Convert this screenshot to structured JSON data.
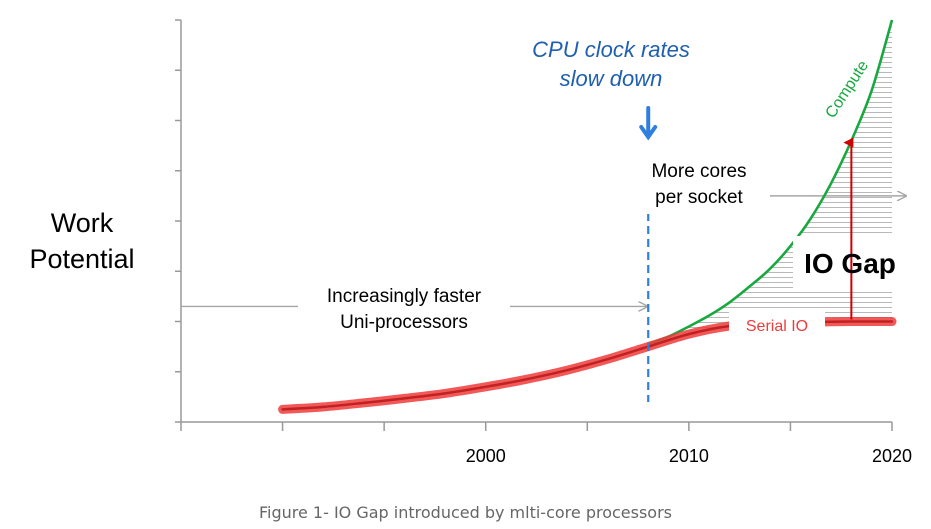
{
  "chart_data": {
    "type": "line",
    "ylabel": [
      "Work",
      "Potential"
    ],
    "x": {
      "range": [
        1985,
        2020
      ],
      "ticks": [
        1985,
        1990,
        1995,
        2000,
        2005,
        2010,
        2015,
        2020
      ],
      "labeled_ticks": [
        2000,
        2010,
        2020
      ]
    },
    "y": {
      "range": [
        0,
        8
      ],
      "ticks": [
        0,
        1,
        2,
        3,
        4,
        5,
        6,
        7,
        8
      ]
    },
    "series": [
      {
        "name": "Compute",
        "color": "#18a840",
        "x": [
          2008,
          2009,
          2010,
          2011,
          2012,
          2013,
          2014,
          2015,
          2016,
          2017,
          2018,
          2019,
          2020
        ],
        "values": [
          1.55,
          1.7,
          1.9,
          2.12,
          2.38,
          2.7,
          3.05,
          3.5,
          4.05,
          4.75,
          5.6,
          6.6,
          8.0
        ]
      },
      {
        "name": "Serial IO",
        "color": "#ee3b3b",
        "x": [
          1990,
          1992,
          1994,
          1996,
          1998,
          2000,
          2002,
          2004,
          2006,
          2008,
          2010,
          2012,
          2014,
          2016,
          2018,
          2020
        ],
        "values": [
          0.25,
          0.3,
          0.38,
          0.47,
          0.57,
          0.7,
          0.85,
          1.03,
          1.25,
          1.5,
          1.75,
          1.91,
          1.97,
          1.99,
          2.0,
          2.0
        ]
      }
    ],
    "annotations": {
      "cpu_clock": {
        "lines": [
          "CPU clock rates",
          "slow down"
        ],
        "x": 2008
      },
      "more_cores": {
        "lines": [
          "More cores",
          "per socket"
        ],
        "x": 2008,
        "y": 4.5
      },
      "uniprocessors": {
        "lines": [
          "Increasingly faster",
          "Uni-processors"
        ],
        "y": 2.3
      },
      "io_gap": {
        "text": "IO Gap",
        "x": 2018,
        "from": 2.0,
        "to": 5.6
      },
      "compute_label": "Compute",
      "serial_io_label": "Serial IO"
    },
    "caption": "Figure 1- IO Gap introduced by mlti-core processors"
  },
  "colors": {
    "compute": "#18a840",
    "serial_io": "#ee3b3b",
    "divider": "#2f7fe0",
    "cpu_text": "#1f5fb0",
    "arrow_gray": "#a6a6a6",
    "gap_arrow": "#d00000"
  }
}
